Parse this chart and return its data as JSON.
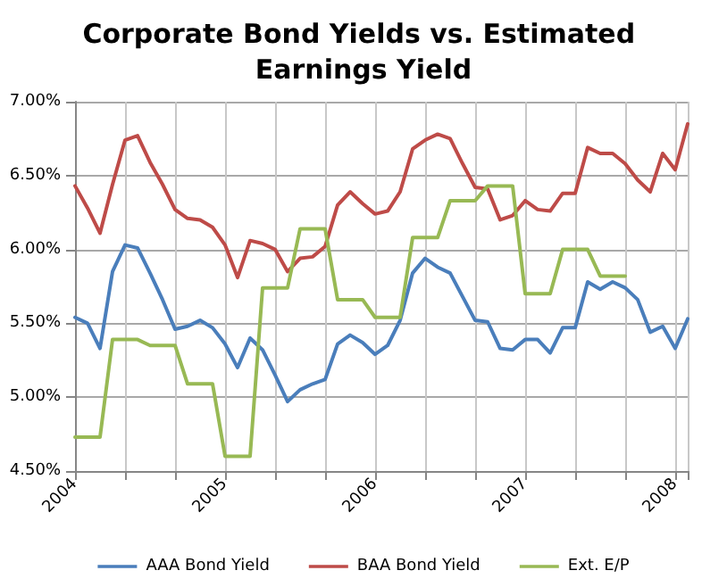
{
  "chart_data": {
    "type": "line",
    "title": "Corporate Bond Yields vs. Estimated Earnings Yield",
    "categories": [
      "2004",
      null,
      null,
      null,
      null,
      null,
      null,
      null,
      null,
      null,
      null,
      null,
      "2005",
      null,
      null,
      null,
      null,
      null,
      null,
      null,
      null,
      null,
      null,
      null,
      "2006",
      null,
      null,
      null,
      null,
      null,
      null,
      null,
      null,
      null,
      null,
      null,
      "2007",
      null,
      null,
      null,
      null,
      null,
      null,
      null,
      null,
      null,
      null,
      null,
      "2008",
      null
    ],
    "series": [
      {
        "name": "AAA Bond Yield",
        "color": "#4a7ebb",
        "values": [
          5.54,
          5.5,
          5.33,
          5.85,
          6.03,
          6.01,
          5.84,
          5.66,
          5.46,
          5.48,
          5.52,
          5.47,
          5.36,
          5.2,
          5.4,
          5.32,
          5.15,
          4.97,
          5.05,
          5.09,
          5.12,
          5.36,
          5.42,
          5.37,
          5.29,
          5.35,
          5.52,
          5.84,
          5.94,
          5.88,
          5.84,
          5.68,
          5.52,
          5.51,
          5.33,
          5.32,
          5.39,
          5.39,
          5.3,
          5.47,
          5.47,
          5.78,
          5.73,
          5.78,
          5.74,
          5.66,
          5.44,
          5.48,
          5.33,
          5.53
        ]
      },
      {
        "name": "BAA Bond Yield",
        "color": "#be4b48",
        "values": [
          6.43,
          6.28,
          6.11,
          6.44,
          6.74,
          6.77,
          6.59,
          6.44,
          6.27,
          6.21,
          6.2,
          6.15,
          6.03,
          5.81,
          6.06,
          6.04,
          6.0,
          5.85,
          5.94,
          5.95,
          6.02,
          6.3,
          6.39,
          6.31,
          6.24,
          6.26,
          6.39,
          6.68,
          6.74,
          6.78,
          6.75,
          6.58,
          6.42,
          6.41,
          6.2,
          6.23,
          6.33,
          6.27,
          6.26,
          6.38,
          6.38,
          6.69,
          6.65,
          6.65,
          6.58,
          6.47,
          6.39,
          6.65,
          6.54,
          6.85
        ]
      },
      {
        "name": "Ext. E/P",
        "color": "#98b954",
        "values": [
          4.73,
          4.73,
          4.73,
          5.39,
          5.39,
          5.39,
          5.35,
          5.35,
          5.35,
          5.09,
          5.09,
          5.09,
          4.6,
          4.6,
          4.6,
          5.74,
          5.74,
          5.74,
          6.14,
          6.14,
          6.14,
          5.66,
          5.66,
          5.66,
          5.54,
          5.54,
          5.54,
          6.08,
          6.08,
          6.08,
          6.33,
          6.33,
          6.33,
          6.43,
          6.43,
          6.43,
          5.7,
          5.7,
          5.7,
          6.0,
          6.0,
          6.0,
          5.82,
          5.82,
          5.82,
          null,
          null,
          null,
          null,
          null
        ]
      }
    ],
    "ylim": [
      4.5,
      7.0
    ],
    "yticks": [
      {
        "value": 4.5,
        "label": "4.50%"
      },
      {
        "value": 5.0,
        "label": "5.00%"
      },
      {
        "value": 5.5,
        "label": "5.50%"
      },
      {
        "value": 6.0,
        "label": "6.00%"
      },
      {
        "value": 6.5,
        "label": "6.50%"
      },
      {
        "value": 7.0,
        "label": "7.00%"
      }
    ],
    "grid": true,
    "legend": "bottom",
    "marker": "none",
    "line_style": "solid"
  }
}
